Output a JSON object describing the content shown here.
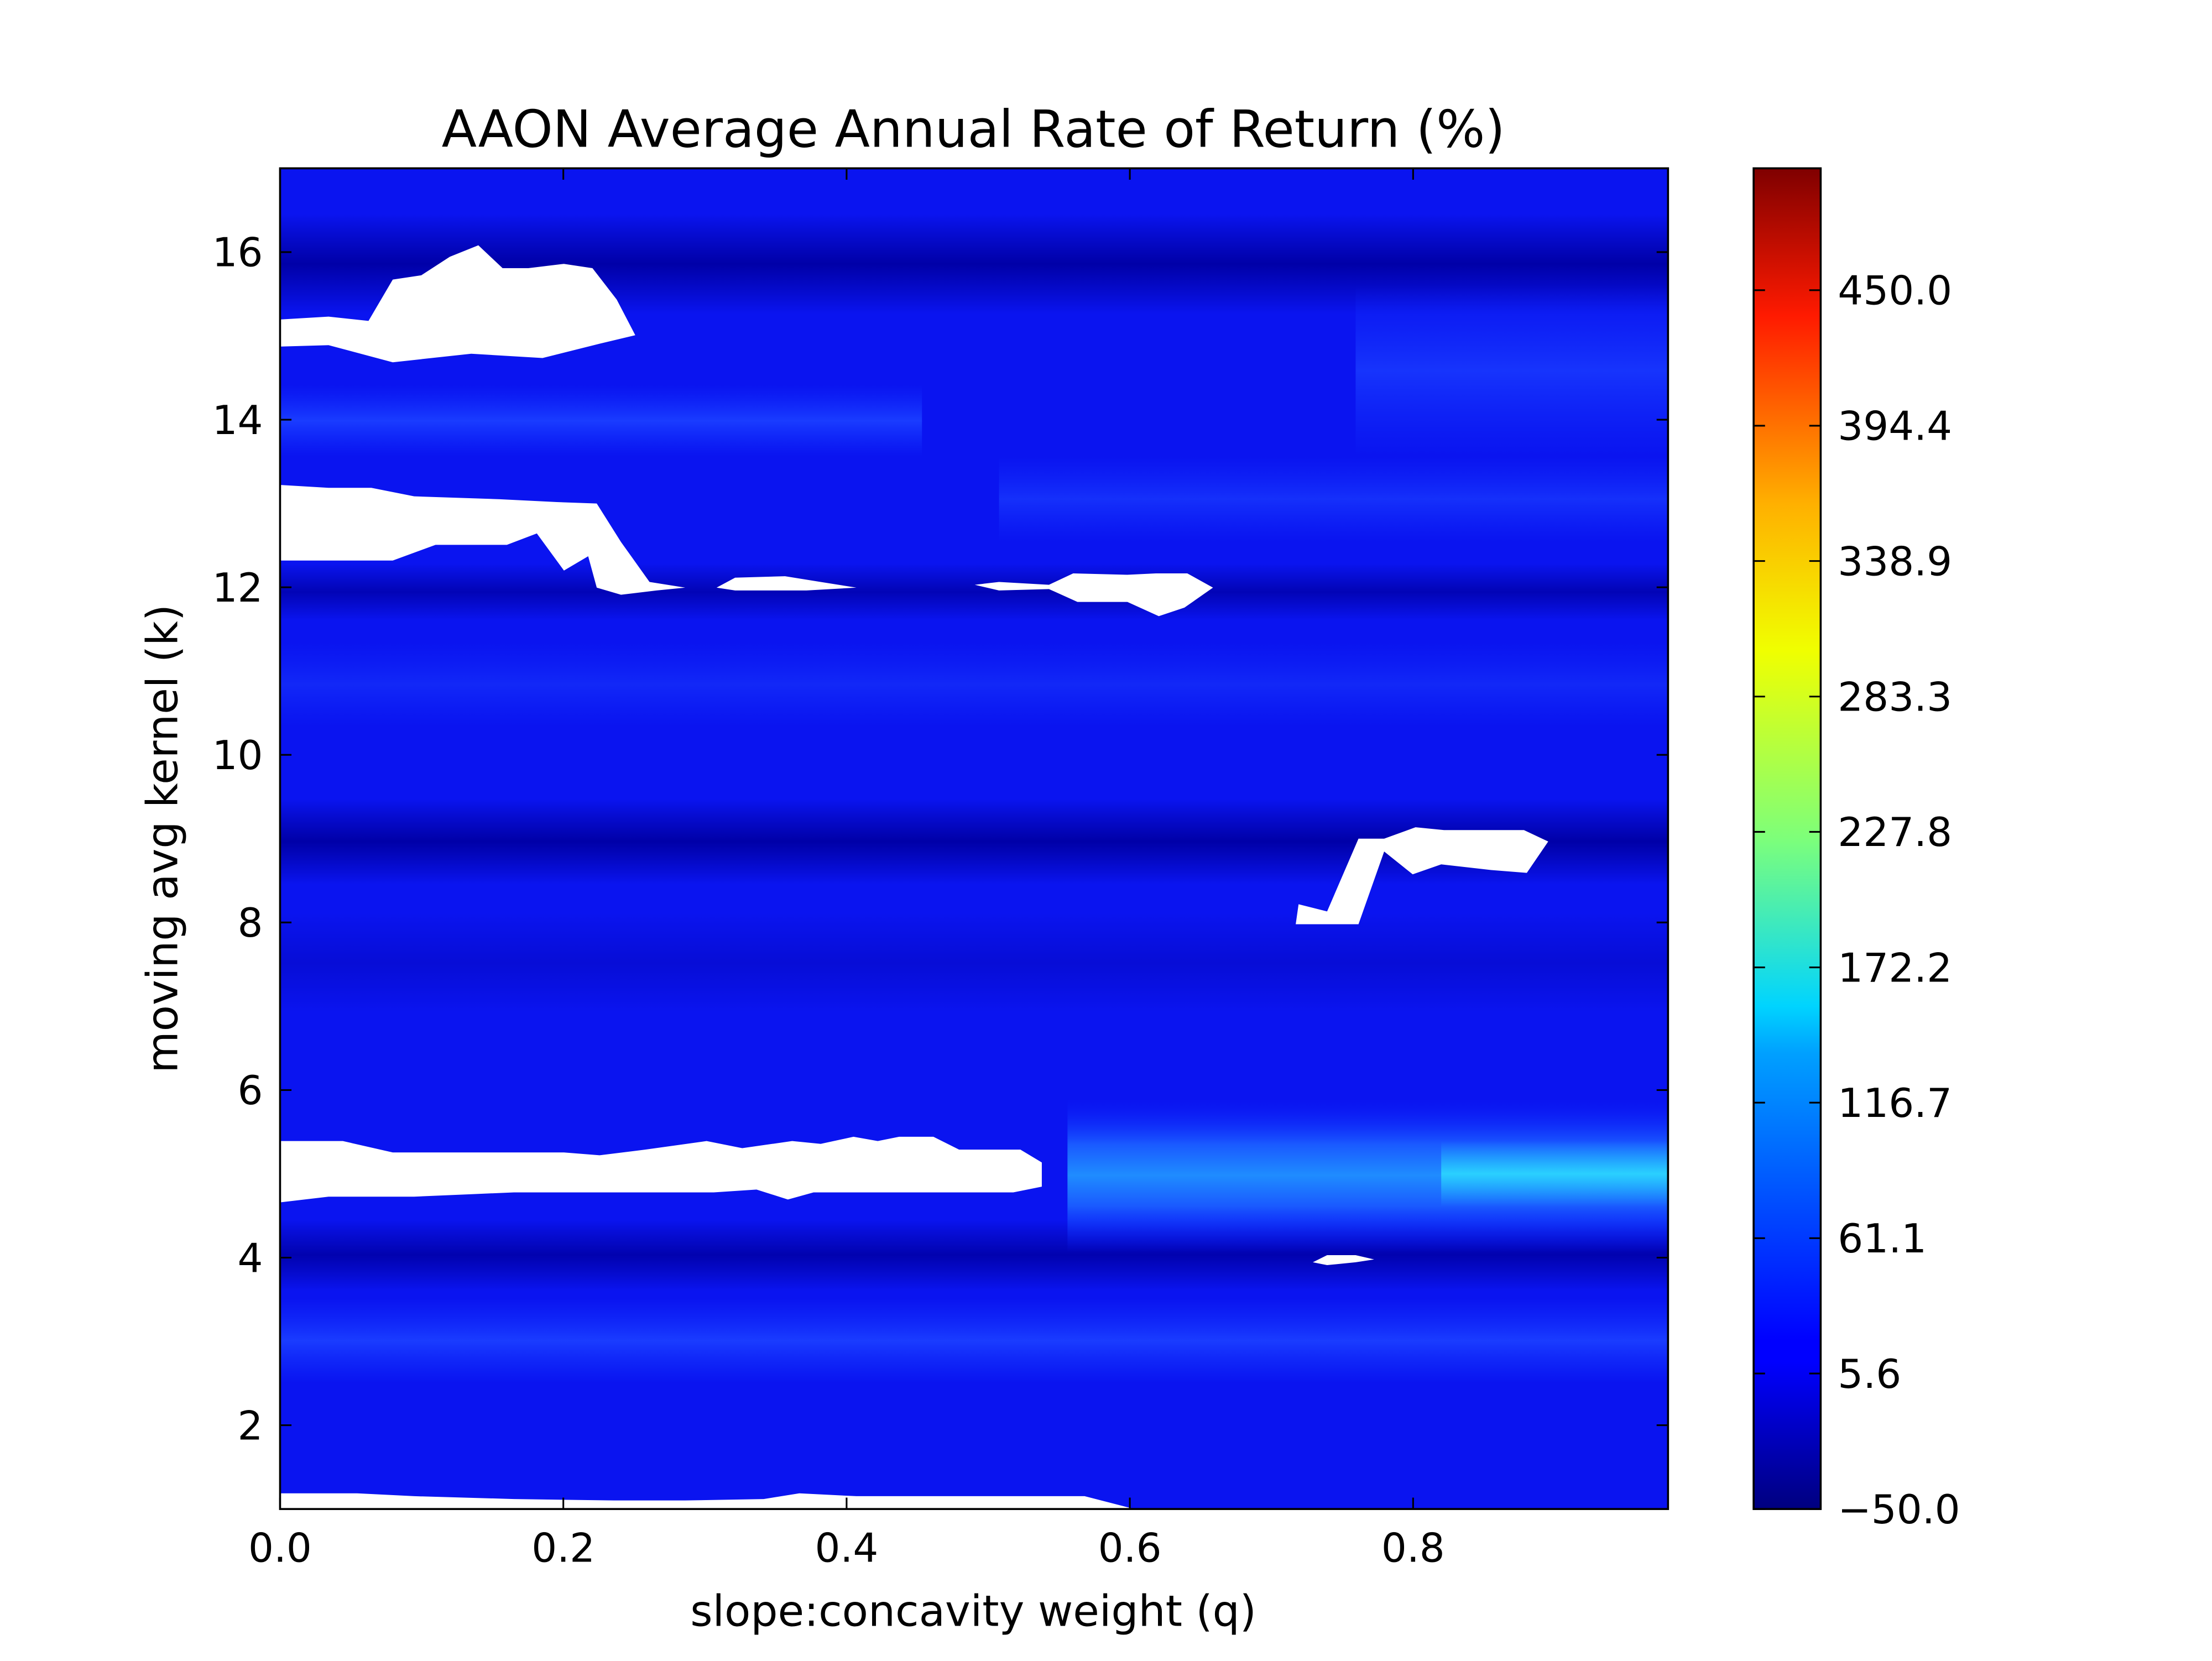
{
  "chart_data": {
    "type": "heatmap",
    "subtype": "filled-contour",
    "title": "AAON Average Annual Rate of Return (%)",
    "xlabel": "slope:concavity weight (q)",
    "ylabel": "moving avg kernel (k)",
    "xlim": [
      0.0,
      0.98
    ],
    "ylim": [
      1,
      17
    ],
    "xticks": [
      0.0,
      0.2,
      0.4,
      0.6,
      0.8
    ],
    "xtick_labels": [
      "0.0",
      "0.2",
      "0.4",
      "0.6",
      "0.8"
    ],
    "yticks": [
      2,
      4,
      6,
      8,
      10,
      12,
      14,
      16
    ],
    "ytick_labels": [
      "2",
      "4",
      "6",
      "8",
      "10",
      "12",
      "14",
      "16"
    ],
    "colormap": "jet",
    "colorbar": {
      "vmin": -50.0,
      "vmax": 500.0,
      "ticks": [
        -50.0,
        5.6,
        61.1,
        116.7,
        172.2,
        227.8,
        283.3,
        338.9,
        394.4,
        450.0
      ],
      "tick_labels": [
        "−50.0",
        "5.6",
        "61.1",
        "116.7",
        "172.2",
        "227.8",
        "283.3",
        "338.9",
        "394.4",
        "450.0"
      ],
      "placement": "right"
    },
    "value_bands": [
      {
        "k_range": [
          1.0,
          1.2
        ],
        "q_range": [
          0.0,
          0.6
        ],
        "value": "missing"
      },
      {
        "k_range": [
          1.2,
          4.0
        ],
        "q_range": [
          0.0,
          0.98
        ],
        "value": 15
      },
      {
        "k_range": [
          2.8,
          3.2
        ],
        "q_range": [
          0.0,
          0.98
        ],
        "value": 30
      },
      {
        "k_range": [
          4.0,
          4.4
        ],
        "q_range": [
          0.0,
          0.98
        ],
        "value": -20
      },
      {
        "k_range": [
          4.7,
          5.4
        ],
        "q_range": [
          0.0,
          0.55
        ],
        "value": "missing"
      },
      {
        "k_range": [
          4.4,
          5.7
        ],
        "q_range": [
          0.55,
          0.98
        ],
        "value": 90
      },
      {
        "k_range": [
          4.85,
          5.15
        ],
        "q_range": [
          0.83,
          0.98
        ],
        "value": 120
      },
      {
        "k_range": [
          5.5,
          9.0
        ],
        "q_range": [
          0.0,
          0.98
        ],
        "value": 0
      },
      {
        "k_range": [
          8.0,
          9.1
        ],
        "q_range": [
          0.72,
          0.9
        ],
        "value": "missing"
      },
      {
        "k_range": [
          8.7,
          9.3
        ],
        "q_range": [
          0.0,
          0.98
        ],
        "value": -35
      },
      {
        "k_range": [
          9.3,
          12.0
        ],
        "q_range": [
          0.0,
          0.98
        ],
        "value": 5
      },
      {
        "k_range": [
          11.7,
          13.3
        ],
        "q_range": [
          0.0,
          0.66
        ],
        "value": "missing"
      },
      {
        "k_range": [
          12.2,
          15.0
        ],
        "q_range": [
          0.0,
          0.98
        ],
        "value": 10
      },
      {
        "k_range": [
          13.8,
          14.2
        ],
        "q_range": [
          0.0,
          0.45
        ],
        "value": 35
      },
      {
        "k_range": [
          14.7,
          16.1
        ],
        "q_range": [
          0.0,
          0.25
        ],
        "value": "missing"
      },
      {
        "k_range": [
          15.0,
          17.0
        ],
        "q_range": [
          0.0,
          0.98
        ],
        "value": -25
      }
    ],
    "missing_color": "#ffffff",
    "grid": false
  }
}
